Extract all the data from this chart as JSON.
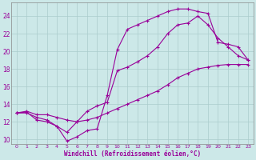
{
  "xlabel": "Windchill (Refroidissement éolien,°C)",
  "bg_color": "#cce8e8",
  "line_color": "#990099",
  "grid_color": "#aacccc",
  "xlim": [
    -0.5,
    23.5
  ],
  "ylim": [
    9.5,
    25.5
  ],
  "xticks": [
    0,
    1,
    2,
    3,
    4,
    5,
    6,
    7,
    8,
    9,
    10,
    11,
    12,
    13,
    14,
    15,
    16,
    17,
    18,
    19,
    20,
    21,
    22,
    23
  ],
  "yticks": [
    10,
    12,
    14,
    16,
    18,
    20,
    22,
    24
  ],
  "line1_x": [
    0,
    1,
    2,
    3,
    4,
    5,
    6,
    7,
    8,
    9,
    10,
    11,
    12,
    13,
    14,
    15,
    16,
    17,
    18,
    19,
    20,
    21,
    22,
    23
  ],
  "line1_y": [
    13.0,
    13.1,
    12.2,
    12.0,
    11.5,
    9.8,
    10.3,
    11.0,
    11.2,
    15.0,
    20.2,
    22.5,
    23.0,
    23.5,
    24.0,
    24.5,
    24.8,
    24.8,
    24.5,
    24.3,
    21.0,
    20.8,
    20.5,
    19.0
  ],
  "line2_x": [
    0,
    1,
    2,
    3,
    4,
    5,
    6,
    7,
    8,
    9,
    10,
    11,
    12,
    13,
    14,
    15,
    16,
    17,
    18,
    19,
    20,
    21,
    22,
    23
  ],
  "line2_y": [
    13.0,
    13.2,
    12.8,
    12.8,
    12.5,
    12.2,
    12.0,
    12.2,
    12.5,
    13.0,
    13.5,
    14.0,
    14.5,
    15.0,
    15.5,
    16.2,
    17.0,
    17.5,
    18.0,
    18.2,
    18.4,
    18.5,
    18.5,
    18.5
  ],
  "line3_x": [
    0,
    1,
    2,
    3,
    4,
    5,
    6,
    7,
    8,
    9,
    10,
    11,
    12,
    13,
    14,
    15,
    16,
    17,
    18,
    19,
    20,
    21,
    22,
    23
  ],
  "line3_y": [
    13.0,
    13.0,
    12.5,
    12.2,
    11.5,
    10.8,
    12.0,
    13.2,
    13.8,
    14.2,
    17.8,
    18.2,
    18.8,
    19.5,
    20.5,
    22.0,
    23.0,
    23.2,
    24.0,
    23.0,
    21.5,
    20.5,
    19.5,
    19.0
  ]
}
